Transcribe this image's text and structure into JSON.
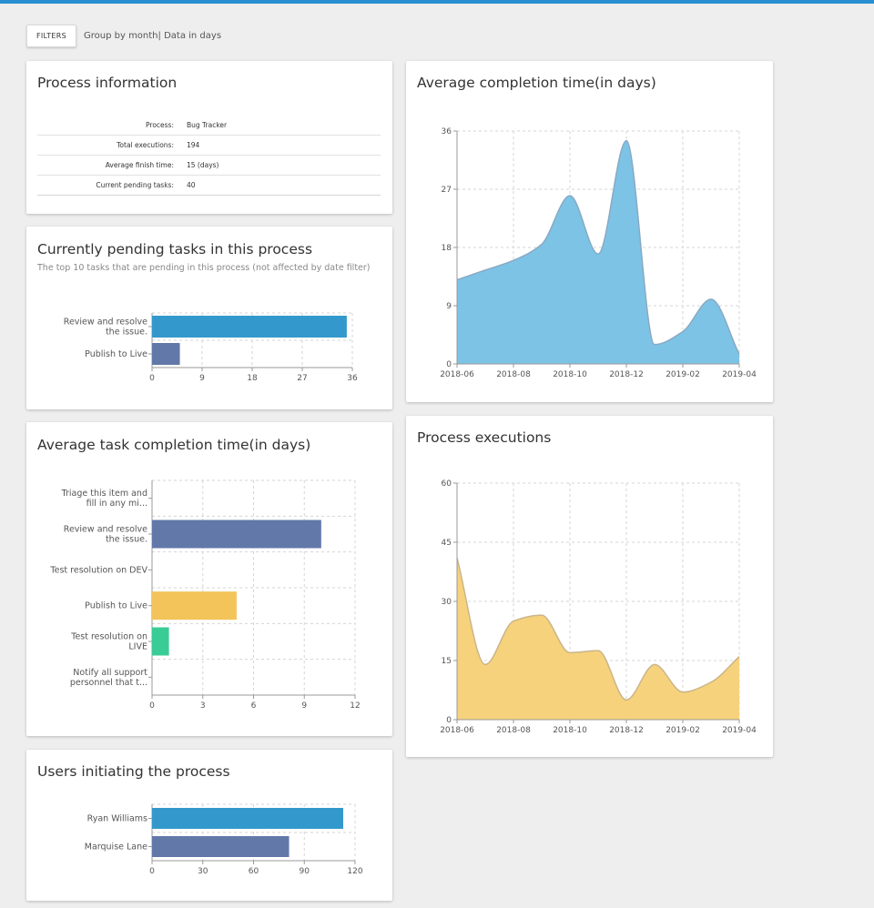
{
  "toolbar": {
    "filters_label": "FILTERS",
    "subtitle": "Group by month| Data in days"
  },
  "process_info": {
    "title": "Process information",
    "rows": [
      {
        "label": "Process:",
        "value": "Bug Tracker"
      },
      {
        "label": "Total executions:",
        "value": "194"
      },
      {
        "label": "Average finish time:",
        "value": "15 (days)"
      },
      {
        "label": "Current pending tasks:",
        "value": "40"
      }
    ]
  },
  "pending_tasks": {
    "title": "Currently pending tasks in this process",
    "subtitle": "The top 10 tasks that are pending in this process (not affected by date filter)"
  },
  "task_completion": {
    "title": "Average task completion time(in days)"
  },
  "users_initiating": {
    "title": "Users initiating the process"
  },
  "avg_completion": {
    "title": "Average completion time(in days)"
  },
  "process_executions": {
    "title": "Process executions"
  },
  "colors": {
    "accent_blue": "#3399cc",
    "slate": "#6278a8",
    "yellow": "#f2c45a",
    "green": "#3acc96",
    "area_blue": "#7cc3e6",
    "area_blue_line": "#8aa9c2",
    "area_yellow": "#f7d27c",
    "area_yellow_line": "#c9b58a"
  },
  "chart_data": [
    {
      "id": "pending_tasks",
      "type": "bar",
      "orientation": "horizontal",
      "categories": [
        [
          "Review and resolve",
          "the issue."
        ],
        [
          "Publish to Live"
        ]
      ],
      "values": [
        35,
        5
      ],
      "bar_colors": [
        "#3399cc",
        "#6278a8"
      ],
      "xlim": [
        0,
        36
      ],
      "xticks": [
        0,
        9,
        18,
        27,
        36
      ],
      "grid": true
    },
    {
      "id": "task_completion",
      "type": "bar",
      "orientation": "horizontal",
      "categories": [
        [
          "Triage this item and",
          "fill in any mi..."
        ],
        [
          "Review and resolve",
          "the issue."
        ],
        [
          "Test resolution on DEV"
        ],
        [
          "Publish to Live"
        ],
        [
          "Test resolution on",
          "LIVE"
        ],
        [
          "Notify all support",
          "personnel that t..."
        ]
      ],
      "values": [
        0,
        10,
        0,
        5,
        1,
        0
      ],
      "bar_colors": [
        "#3399cc",
        "#6278a8",
        "#3399cc",
        "#f2c45a",
        "#3acc96",
        "#3399cc"
      ],
      "xlim": [
        0,
        12
      ],
      "xticks": [
        0,
        3,
        6,
        9,
        12
      ],
      "grid": true
    },
    {
      "id": "users_initiating",
      "type": "bar",
      "orientation": "horizontal",
      "categories": [
        [
          "Ryan Williams"
        ],
        [
          "Marquise Lane"
        ]
      ],
      "values": [
        113,
        81
      ],
      "bar_colors": [
        "#3399cc",
        "#6278a8"
      ],
      "xlim": [
        0,
        120
      ],
      "xticks": [
        0,
        30,
        60,
        90,
        120
      ],
      "grid": true
    },
    {
      "id": "avg_completion",
      "type": "area",
      "x": [
        "2018-06",
        "2018-07",
        "2018-08",
        "2018-09",
        "2018-10",
        "2018-11",
        "2018-12",
        "2019-01",
        "2019-02",
        "2019-03",
        "2019-04"
      ],
      "y": [
        13,
        14.5,
        16,
        18.5,
        26,
        17,
        34.5,
        3,
        5,
        10,
        1.5
      ],
      "xticks": [
        "2018-06",
        "2018-08",
        "2018-10",
        "2018-12",
        "2019-02",
        "2019-04"
      ],
      "ylim": [
        0,
        36
      ],
      "yticks": [
        0,
        9,
        18,
        27,
        36
      ],
      "fill": "#7cc3e6",
      "stroke": "#8aa9c2",
      "grid": true
    },
    {
      "id": "process_executions",
      "type": "area",
      "x": [
        "2018-06",
        "2018-07",
        "2018-08",
        "2018-09",
        "2018-10",
        "2018-11",
        "2018-12",
        "2019-01",
        "2019-02",
        "2019-03",
        "2019-04"
      ],
      "y": [
        41,
        14,
        25,
        26.5,
        17,
        17.5,
        5,
        14,
        7,
        9.5,
        16
      ],
      "xticks": [
        "2018-06",
        "2018-08",
        "2018-10",
        "2018-12",
        "2019-02",
        "2019-04"
      ],
      "ylim": [
        0,
        60
      ],
      "yticks": [
        0,
        15,
        30,
        45,
        60
      ],
      "fill": "#f7d27c",
      "stroke": "#c9b58a",
      "grid": true
    }
  ]
}
